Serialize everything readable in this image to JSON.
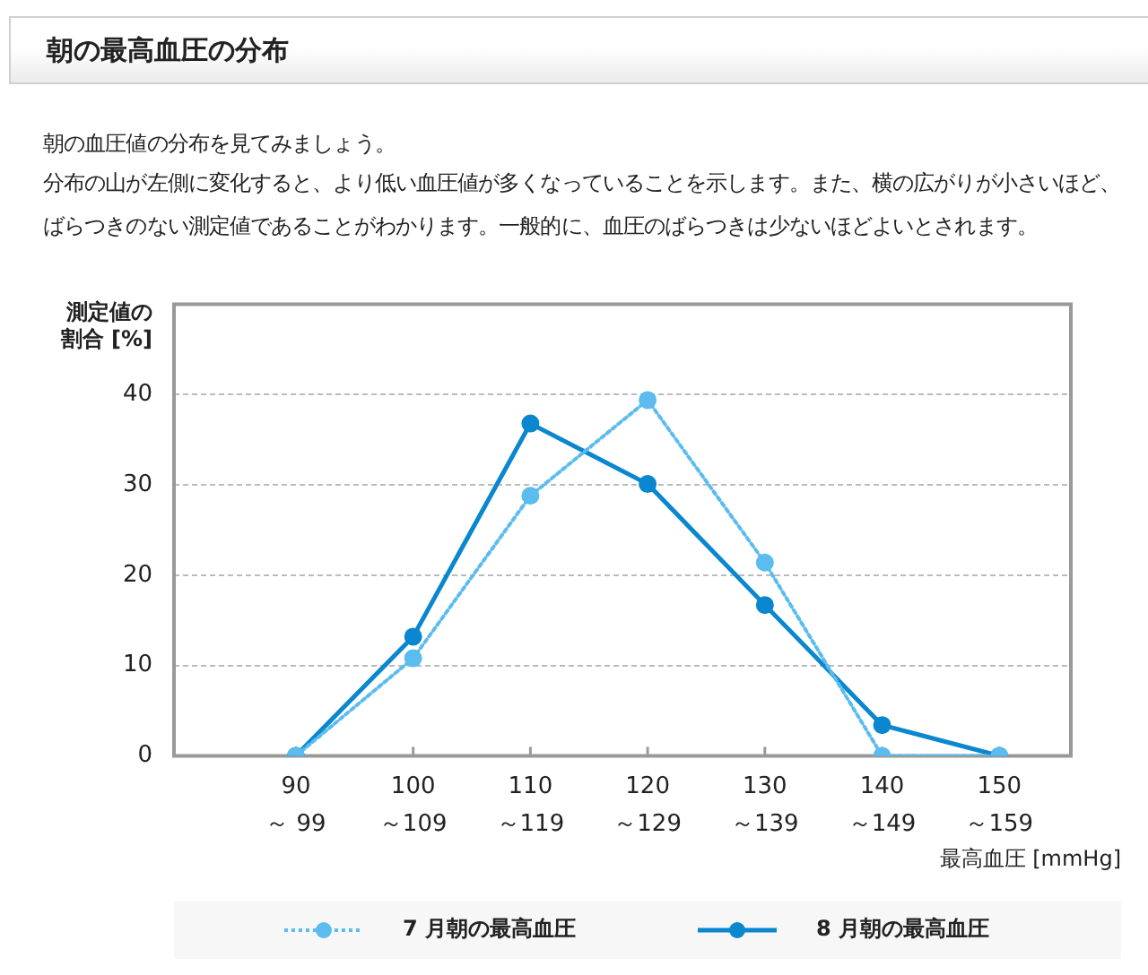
{
  "chart_data": {
    "type": "line",
    "title": "朝の最高血圧の分布",
    "subtitle": "朝の血圧値の分布を見てみましょう。",
    "annotations": [
      "分布の山が左側に変化すると、より低い血圧値が多くなっていることを示します。また、横の広がりが小さいほど、ばらつきのない測定値であることがわかります。一般的に、血圧のばらつきは少ないほどよいとされます。"
    ],
    "xlabel": "最高血圧 [mmHg]",
    "ylabel": "測定値の割合 [%]",
    "categories": [
      "90\n～ 99",
      "100\n～109",
      "110\n～119",
      "120\n～129",
      "130\n～139",
      "140\n～149",
      "150\n～159"
    ],
    "series": [
      {
        "name": "7 月朝の最高血圧",
        "color": "#5cbcee",
        "line_style": "dotted",
        "values": [
          0,
          10.8,
          28.8,
          39.4,
          21.4,
          0,
          0
        ]
      },
      {
        "name": "8 月朝の最高血圧",
        "color": "#0a87cf",
        "line_style": "solid",
        "values": [
          0,
          13.2,
          36.8,
          30.1,
          16.7,
          3.4,
          0
        ]
      }
    ],
    "ylim": [
      0,
      50
    ],
    "yticks": [
      0,
      10,
      20,
      30,
      40
    ],
    "grid": "y",
    "legend": "bottom",
    "marker": "circle"
  }
}
